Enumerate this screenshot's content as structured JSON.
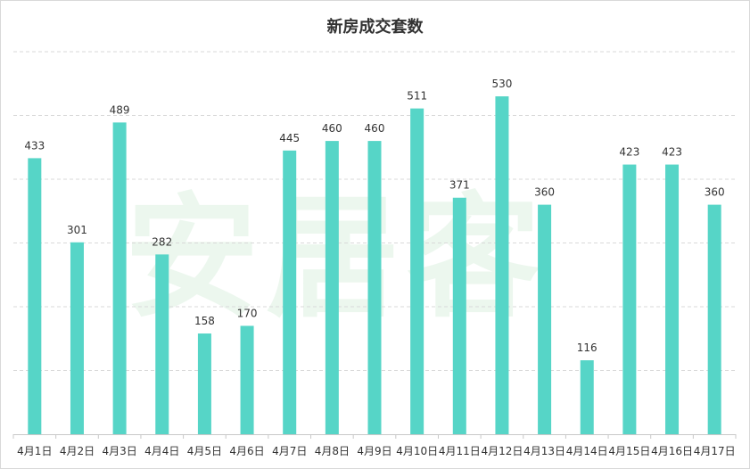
{
  "chart_data": {
    "type": "bar",
    "title": "新房成交套数",
    "categories": [
      "4月1日",
      "4月2日",
      "4月3日",
      "4月4日",
      "4月5日",
      "4月6日",
      "4月7日",
      "4月8日",
      "4月9日",
      "4月10日",
      "4月11日",
      "4月12日",
      "4月13日",
      "4月14日",
      "4月15日",
      "4月16日",
      "4月17日"
    ],
    "values": [
      433,
      301,
      489,
      282,
      158,
      170,
      445,
      460,
      460,
      511,
      371,
      530,
      360,
      116,
      423,
      423,
      360
    ],
    "xlabel": "",
    "ylabel": "",
    "ylim": [
      0,
      600
    ],
    "grid": true,
    "legend": "none",
    "bar_color": "#56d5c7",
    "gridline_color": "#d9d9d9"
  },
  "watermark": "安居客"
}
